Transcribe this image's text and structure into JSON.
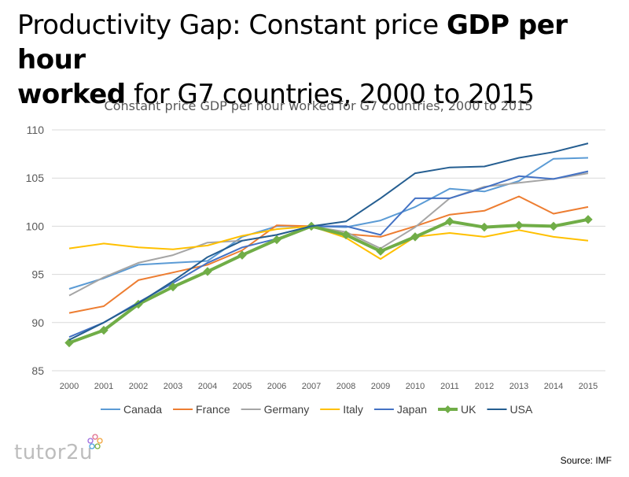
{
  "header": {
    "title_part1": "Productivity Gap: Constant price ",
    "title_bold1": "GDP per hour",
    "title_bold2": "worked",
    "title_part2": " for G7 countries, 2000 to 2015"
  },
  "footer": {
    "logo_text": "tutor2u",
    "source": "Source: IMF"
  },
  "chart_data": {
    "type": "line",
    "title": "Constant price GDP per hour worked for G7 countries, 2000 to 2015",
    "xlabel": "",
    "ylabel": "",
    "ylim": [
      85,
      110
    ],
    "yticks": [
      85,
      90,
      95,
      100,
      105,
      110
    ],
    "grid": true,
    "legend_position": "bottom",
    "x": [
      "2000",
      "2001",
      "2002",
      "2003",
      "2004",
      "2005",
      "2006",
      "2007",
      "2008",
      "2009",
      "2010",
      "2011",
      "2012",
      "2013",
      "2014",
      "2015"
    ],
    "series": [
      {
        "name": "Canada",
        "color": "#5b9bd5",
        "values": [
          93.5,
          94.6,
          96.0,
          96.2,
          96.4,
          98.9,
          100.0,
          100.0,
          99.9,
          100.6,
          102.0,
          103.9,
          103.6,
          104.7,
          107.0,
          107.1
        ]
      },
      {
        "name": "France",
        "color": "#ed7d31",
        "values": [
          91.0,
          91.7,
          94.4,
          95.2,
          96.0,
          97.5,
          100.1,
          100.0,
          99.2,
          98.9,
          100.0,
          101.2,
          101.6,
          103.1,
          101.3,
          102.0
        ]
      },
      {
        "name": "Germany",
        "color": "#a5a5a5",
        "values": [
          92.8,
          94.7,
          96.2,
          97.0,
          98.3,
          98.5,
          99.1,
          100.0,
          99.4,
          97.7,
          99.9,
          102.9,
          104.1,
          104.5,
          104.9,
          105.5
        ]
      },
      {
        "name": "Italy",
        "color": "#ffc000",
        "values": [
          97.7,
          98.2,
          97.8,
          97.6,
          98.0,
          99.0,
          99.7,
          100.0,
          98.8,
          96.6,
          98.9,
          99.3,
          98.9,
          99.6,
          98.9,
          98.5
        ]
      },
      {
        "name": "Japan",
        "color": "#4472c4",
        "values": [
          88.5,
          90.0,
          92.1,
          94.1,
          96.2,
          97.8,
          98.7,
          100.0,
          100.0,
          99.1,
          102.9,
          102.9,
          104.0,
          105.2,
          104.9,
          105.7
        ]
      },
      {
        "name": "UK",
        "color": "#70ad47",
        "marker": "diamond",
        "values": [
          87.9,
          89.2,
          91.9,
          93.7,
          95.3,
          97.0,
          98.6,
          100.0,
          99.1,
          97.4,
          98.9,
          100.5,
          99.9,
          100.1,
          100.0,
          100.7
        ]
      },
      {
        "name": "USA",
        "color": "#255e91",
        "values": [
          88.2,
          90.0,
          92.0,
          94.3,
          96.8,
          98.5,
          99.1,
          100.0,
          100.5,
          102.9,
          105.5,
          106.1,
          106.2,
          107.1,
          107.7,
          108.6
        ]
      }
    ]
  }
}
